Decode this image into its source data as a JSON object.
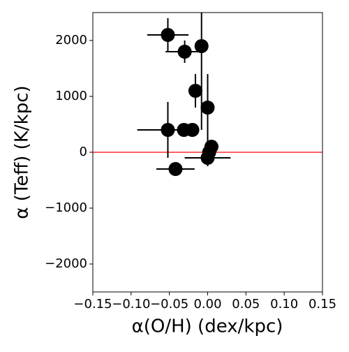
{
  "chart_data": {
    "type": "errorbar-scatter",
    "xlabel": "α(O/H) (dex/kpc)",
    "ylabel": "α (Teff) (K/kpc)",
    "xlim": [
      -0.15,
      0.15
    ],
    "ylim": [
      -2500,
      2500
    ],
    "xticks": [
      {
        "value": -0.15,
        "label": "−0.15"
      },
      {
        "value": -0.1,
        "label": "−0.10"
      },
      {
        "value": -0.05,
        "label": "−0.05"
      },
      {
        "value": 0,
        "label": "0.00"
      },
      {
        "value": 0.05,
        "label": "0.05"
      },
      {
        "value": 0.1,
        "label": "0.10"
      },
      {
        "value": 0.15,
        "label": "0.15"
      }
    ],
    "yticks": [
      {
        "value": -2000,
        "label": "−2000"
      },
      {
        "value": -1000,
        "label": "−1000"
      },
      0,
      1000,
      2000
    ],
    "hline": {
      "value": 0,
      "color": "#ff0000"
    },
    "series": [
      {
        "color": "#000000",
        "x": [
          -0.052,
          -0.03,
          -0.008,
          -0.016,
          0.0,
          -0.052,
          -0.031,
          -0.02,
          -0.042,
          0.005,
          0.002,
          0.0
        ],
        "values": [
          2100,
          1800,
          1900,
          1100,
          800,
          400,
          400,
          400,
          -300,
          100,
          0,
          -100
        ],
        "xerr": [
          0.027,
          0.025,
          0.003,
          0.003,
          0.003,
          0.04,
          0.01,
          0.005,
          0.025,
          0.003,
          0.003,
          0.03
        ],
        "yerr": [
          300,
          200,
          1500,
          300,
          600,
          500,
          50,
          50,
          100,
          50,
          50,
          150
        ]
      }
    ]
  }
}
